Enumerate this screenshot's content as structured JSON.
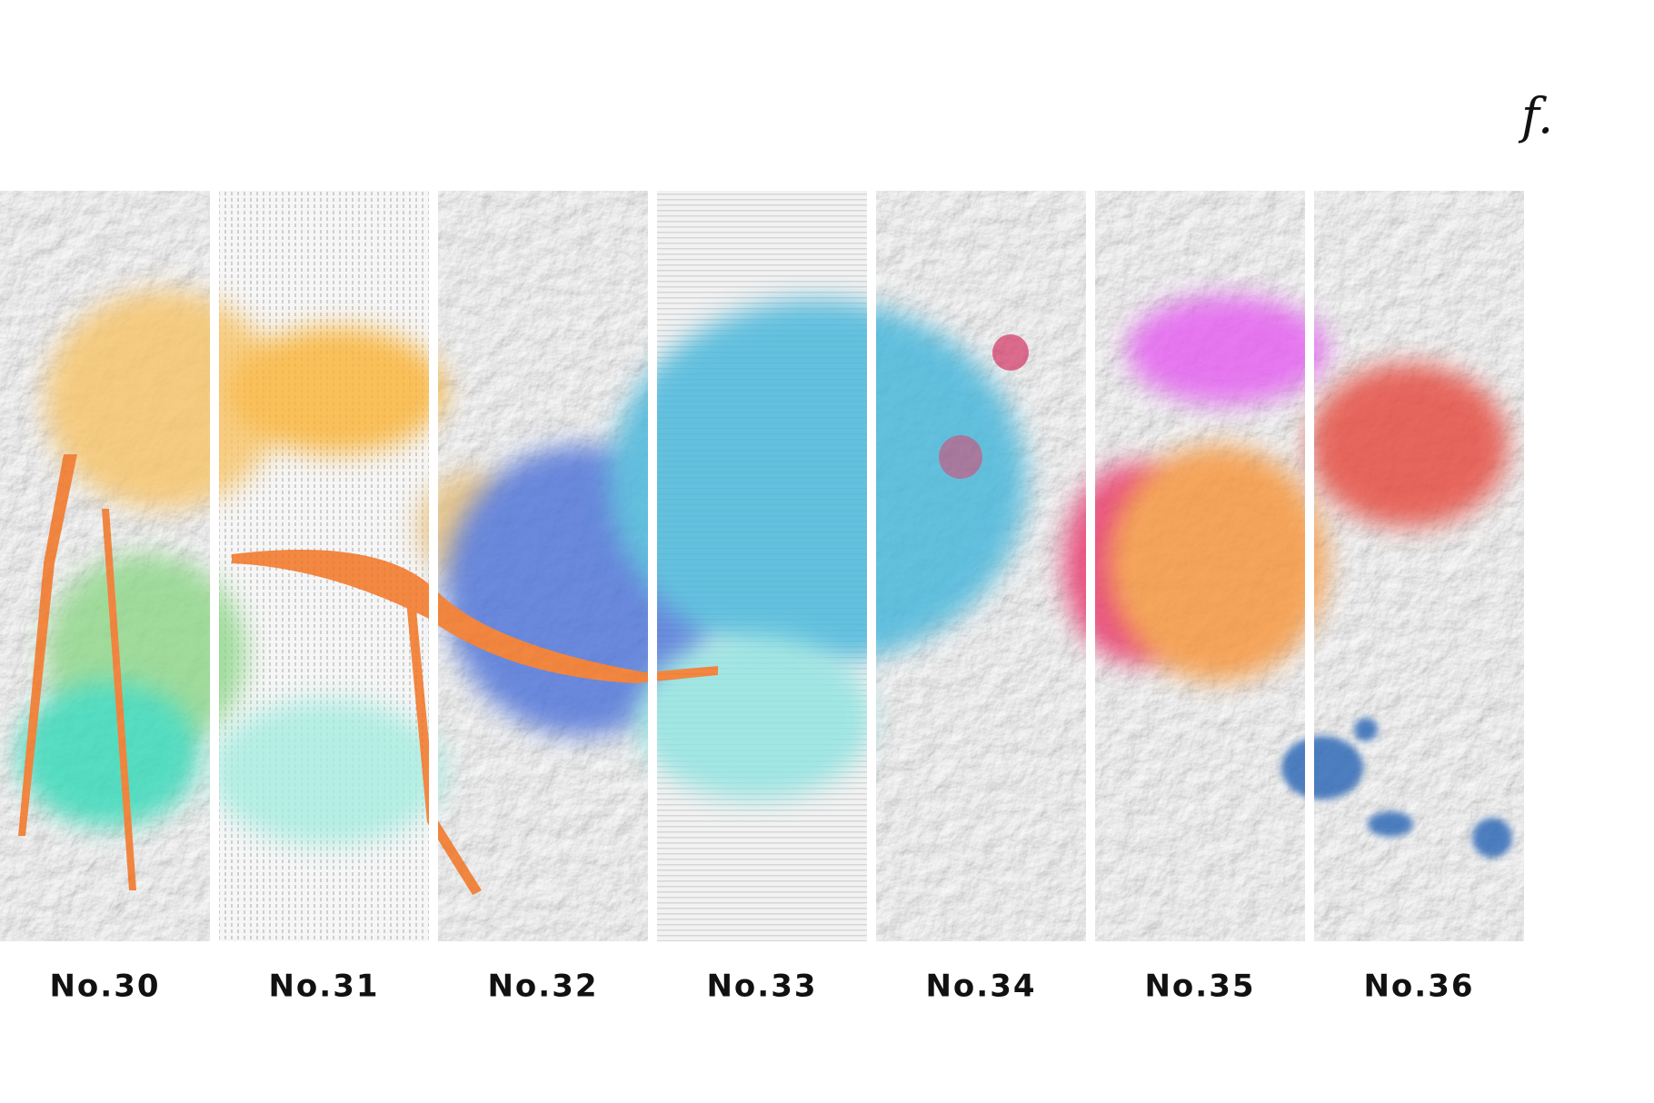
{
  "logo": "f.",
  "panels": [
    {
      "label": "No.30"
    },
    {
      "label": "No.31"
    },
    {
      "label": "No.32"
    },
    {
      "label": "No.33"
    },
    {
      "label": "No.34"
    },
    {
      "label": "No.35"
    },
    {
      "label": "No.36"
    }
  ]
}
